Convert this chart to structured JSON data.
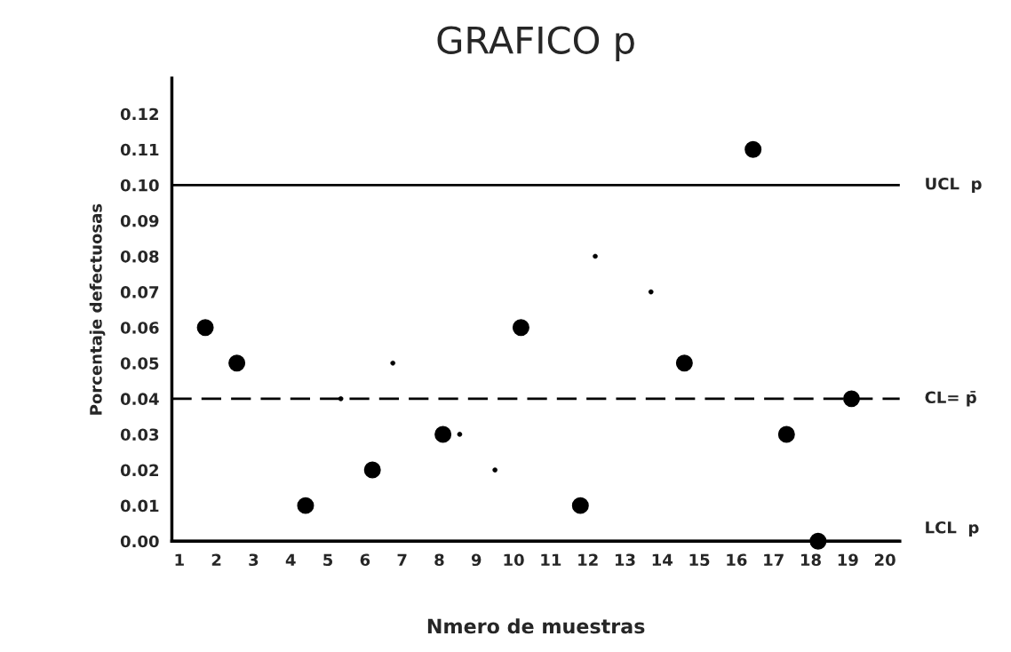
{
  "chart_data": {
    "type": "scatter",
    "title": "GRAFICO p",
    "xlabel": "Nmero de muestras",
    "ylabel": "Porcentaje defectuosas",
    "series": [
      {
        "color": "#000000",
        "x": [
          1.7,
          2.55,
          4.4,
          6.2,
          8.1,
          10.2,
          11.8,
          14.6,
          16.45,
          17.35,
          18.2,
          19.1
        ],
        "values": [
          0.06,
          0.05,
          0.01,
          0.02,
          0.03,
          0.06,
          0.01,
          0.05,
          0.11,
          0.03,
          0.0,
          0.04
        ]
      },
      {
        "color": "#000000",
        "x": [
          5.35,
          6.75,
          8.55,
          9.5,
          12.2,
          13.7
        ],
        "values": [
          0.04,
          0.05,
          0.03,
          0.02,
          0.08,
          0.07
        ]
      }
    ],
    "marker": "circle",
    "grid": false,
    "xlim": [
      0.8,
      20.4
    ],
    "xticks": [
      1,
      2,
      3,
      4,
      5,
      6,
      7,
      8,
      9,
      10,
      11,
      12,
      13,
      14,
      15,
      16,
      17,
      18,
      19,
      20
    ],
    "ylim": [
      0,
      0.13
    ],
    "yticks": [
      {
        "value": 0,
        "label": "0.00"
      },
      0.01,
      0.02,
      0.03,
      0.04,
      0.05,
      0.06,
      0.07,
      0.08,
      0.09,
      {
        "value": 0.1,
        "label": "0.10"
      },
      0.11,
      0.12
    ],
    "ref_lines": [
      {
        "axis": "y",
        "value": 0.1,
        "label": "UCL  p",
        "line_style": "solid"
      },
      {
        "axis": "y",
        "value": 0.04,
        "label": "CL= p̄",
        "line_style": "dashed"
      },
      {
        "axis": "y",
        "value": 0,
        "label": "LCL  p",
        "line_style": "solid"
      }
    ]
  }
}
